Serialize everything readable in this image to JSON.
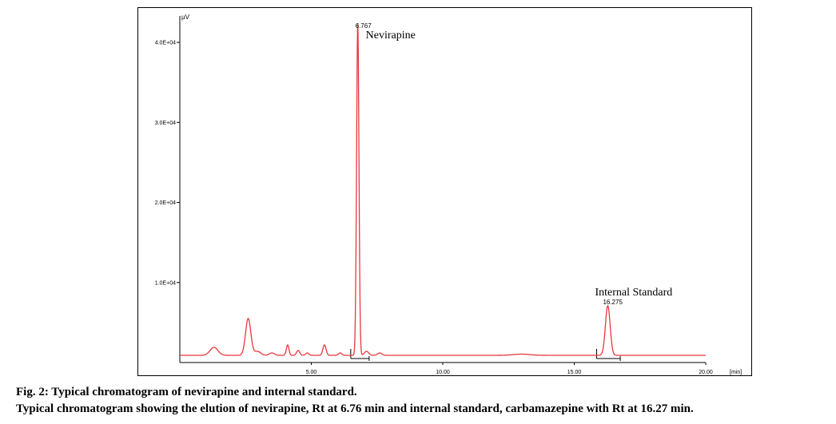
{
  "chart_data": {
    "type": "line",
    "y_unit": "µV",
    "x_unit": "[min]",
    "xlim": [
      0,
      20.0
    ],
    "ylim": [
      0,
      42000
    ],
    "x_ticks": [
      {
        "value": 5,
        "label": "5.00"
      },
      {
        "value": 10,
        "label": "10.00"
      },
      {
        "value": 15,
        "label": "15.00"
      },
      {
        "value": 20,
        "label": "20.00"
      }
    ],
    "y_ticks": [
      {
        "value": 10000,
        "label": "1.0E+04"
      },
      {
        "value": 20000,
        "label": "2.0E+04"
      },
      {
        "value": 30000,
        "label": "3.0E+04"
      },
      {
        "value": 40000,
        "label": "4.0E+04"
      }
    ],
    "series_color": "#e8383d",
    "baseline": 900,
    "peaks": [
      {
        "rt": 1.3,
        "height": 1000,
        "width": 0.15
      },
      {
        "rt": 2.6,
        "height": 4600,
        "width": 0.1
      },
      {
        "rt": 2.95,
        "height": 500,
        "width": 0.12
      },
      {
        "rt": 3.5,
        "height": 300,
        "width": 0.1
      },
      {
        "rt": 4.1,
        "height": 1300,
        "width": 0.05
      },
      {
        "rt": 4.5,
        "height": 600,
        "width": 0.06
      },
      {
        "rt": 4.85,
        "height": 300,
        "width": 0.06
      },
      {
        "rt": 5.5,
        "height": 1300,
        "width": 0.06
      },
      {
        "rt": 6.1,
        "height": 300,
        "width": 0.06
      },
      {
        "rt": 6.767,
        "height": 41500,
        "width": 0.045
      },
      {
        "rt": 7.1,
        "height": 500,
        "width": 0.08
      },
      {
        "rt": 7.6,
        "height": 300,
        "width": 0.08
      },
      {
        "rt": 13.0,
        "height": 150,
        "width": 0.3
      },
      {
        "rt": 16.275,
        "height": 6200,
        "width": 0.09
      }
    ],
    "baseline_markers": [
      {
        "start": 6.5,
        "end": 7.2
      },
      {
        "start": 15.85,
        "end": 16.75
      }
    ],
    "peak_labels": [
      {
        "rt": 6.767,
        "rt_label": "6.767",
        "name": "Nevirapine"
      },
      {
        "rt": 16.275,
        "rt_label": "16.275",
        "name": "Internal Standard"
      }
    ]
  },
  "caption": {
    "title": "Fig. 2: Typical chromatogram of nevirapine and internal standard.",
    "subtitle": "Typical chromatogram showing the elution of nevirapine, Rt at 6.76 min and internal standard, carbamazepine with Rt at 16.27 min."
  }
}
